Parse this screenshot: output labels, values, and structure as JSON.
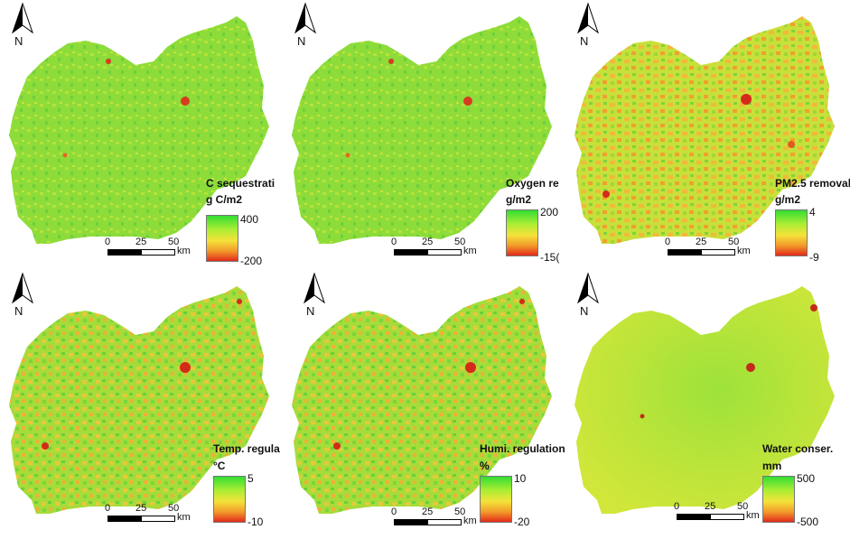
{
  "north_label": "N",
  "scale": {
    "ticks": [
      "0",
      "25",
      "50"
    ],
    "unit": "km"
  },
  "panels": [
    {
      "title": "C sequestrati",
      "unit": "g C/m2",
      "max": "400",
      "min": "-200",
      "style": "green"
    },
    {
      "title": "Oxygen re",
      "unit": "g/m2",
      "max": "200",
      "min": "-15(",
      "style": "green"
    },
    {
      "title": "PM2.5 removal",
      "unit": "g/m2",
      "max": "4",
      "min": "-9",
      "style": "orange"
    },
    {
      "title": "Temp. regula",
      "unit": "°C",
      "max": "5",
      "min": "-10",
      "style": "mixed"
    },
    {
      "title": "Humi. regulation",
      "unit": "%",
      "max": "10",
      "min": "-20",
      "style": "mixed"
    },
    {
      "title": "Water conser.",
      "unit": "mm",
      "max": "500",
      "min": "-500",
      "style": "smooth"
    }
  ],
  "colors": {
    "high": "#33dd33",
    "mid": "#f5e23a",
    "low": "#e22a1a"
  }
}
